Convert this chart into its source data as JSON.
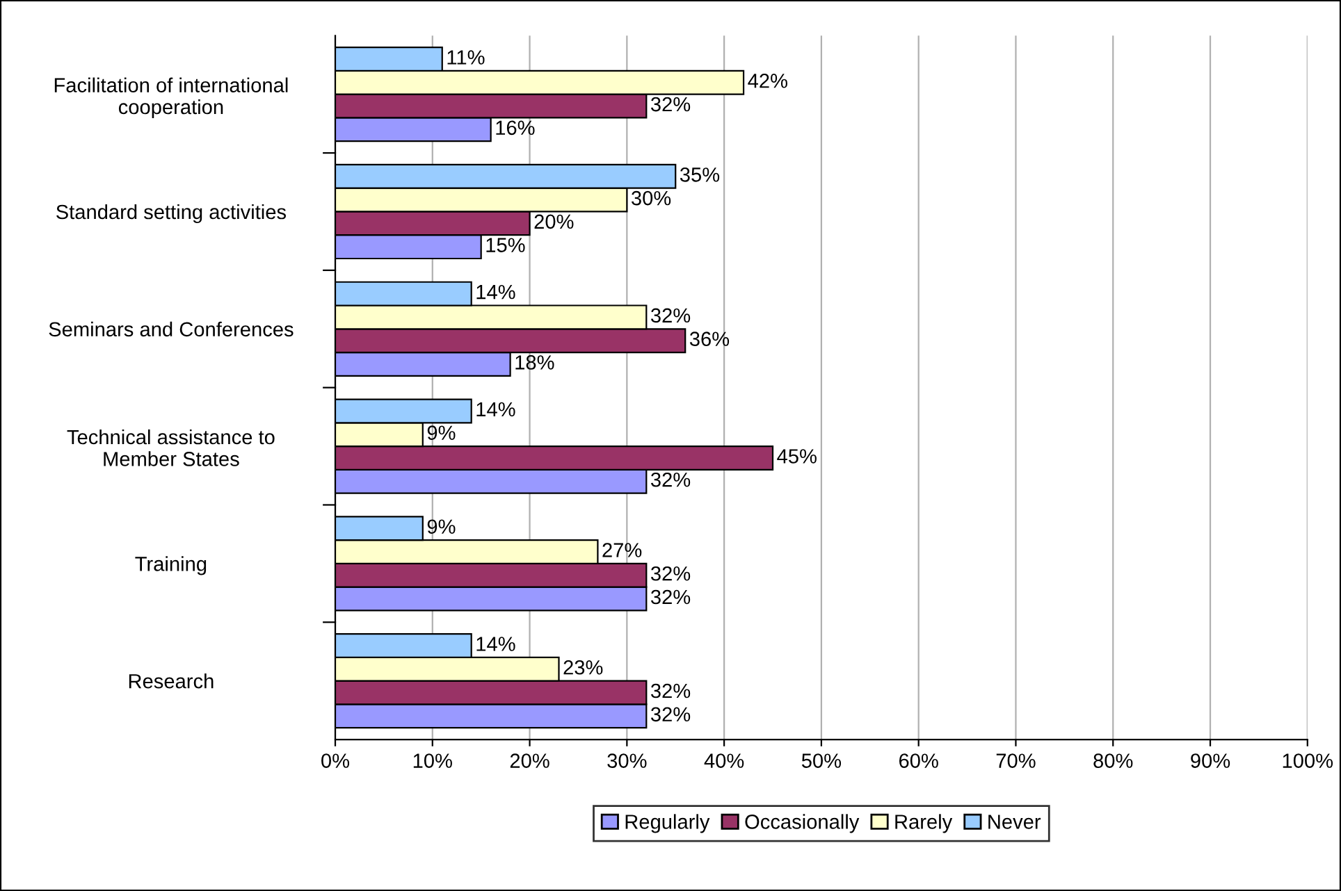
{
  "chart_data": {
    "type": "bar",
    "orientation": "horizontal",
    "categories": [
      "Facilitation of international\ncooperation",
      "Standard setting activities",
      "Seminars and Conferences",
      "Technical assistance to\nMember States",
      "Training",
      "Research"
    ],
    "series": [
      {
        "name": "Regularly",
        "color": "#9999ff",
        "values": [
          16,
          15,
          18,
          32,
          32,
          32
        ],
        "value_labels": [
          "16%",
          "15%",
          "18%",
          "32%",
          "32%",
          "32%"
        ]
      },
      {
        "name": "Occasionally",
        "color": "#993366",
        "values": [
          32,
          20,
          36,
          45,
          32,
          32
        ],
        "value_labels": [
          "32%",
          "20%",
          "36%",
          "45%",
          "32%",
          "32%"
        ]
      },
      {
        "name": "Rarely",
        "color": "#ffffcc",
        "values": [
          42,
          30,
          32,
          9,
          27,
          23
        ],
        "value_labels": [
          "42%",
          "30%",
          "32%",
          "9%",
          "27%",
          "23%"
        ]
      },
      {
        "name": "Never",
        "color": "#99ccff",
        "values": [
          11,
          35,
          14,
          14,
          9,
          14
        ],
        "value_labels": [
          "11%",
          "35%",
          "14%",
          "14%",
          "9%",
          "14%"
        ]
      }
    ],
    "xlim": [
      0,
      100
    ],
    "xticks": [
      {
        "value": 0,
        "label": "0%"
      },
      {
        "value": 10,
        "label": "10%"
      },
      {
        "value": 20,
        "label": "20%"
      },
      {
        "value": 30,
        "label": "30%"
      },
      {
        "value": 40,
        "label": "40%"
      },
      {
        "value": 50,
        "label": "50%"
      },
      {
        "value": 60,
        "label": "60%"
      },
      {
        "value": 70,
        "label": "70%"
      },
      {
        "value": 80,
        "label": "80%"
      },
      {
        "value": 90,
        "label": "90%"
      },
      {
        "value": 100,
        "label": "100%"
      }
    ],
    "grid": "x",
    "legend": "bottom"
  }
}
